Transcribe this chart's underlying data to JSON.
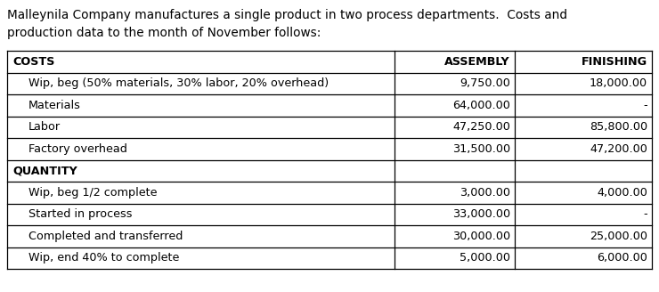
{
  "title_line1": "Malleynila Company manufactures a single product in two process departments.  Costs and",
  "title_line2": "production data to the month of November follows:",
  "rows": [
    {
      "label": "COSTS",
      "indent": false,
      "bold": true,
      "assembly": "ASSEMBLY",
      "finishing": "FINISHING",
      "section_header": true,
      "val_bold": true
    },
    {
      "label": "Wip, beg (50% materials, 30% labor, 20% overhead)",
      "indent": true,
      "bold": false,
      "assembly": "9,750.00",
      "finishing": "18,000.00"
    },
    {
      "label": "Materials",
      "indent": true,
      "bold": false,
      "assembly": "64,000.00",
      "finishing": "-"
    },
    {
      "label": "Labor",
      "indent": true,
      "bold": false,
      "assembly": "47,250.00",
      "finishing": "85,800.00"
    },
    {
      "label": "Factory overhead",
      "indent": true,
      "bold": false,
      "assembly": "31,500.00",
      "finishing": "47,200.00"
    },
    {
      "label": "QUANTITY",
      "indent": false,
      "bold": true,
      "assembly": "",
      "finishing": "",
      "section_header": true,
      "val_bold": false
    },
    {
      "label": "Wip, beg 1/2 complete",
      "indent": true,
      "bold": false,
      "assembly": "3,000.00",
      "finishing": "4,000.00"
    },
    {
      "label": "Started in process",
      "indent": true,
      "bold": false,
      "assembly": "33,000.00",
      "finishing": "-"
    },
    {
      "label": "Completed and transferred",
      "indent": true,
      "bold": false,
      "assembly": "30,000.00",
      "finishing": "25,000.00"
    },
    {
      "label": "Wip, end 40% to complete",
      "indent": true,
      "bold": false,
      "assembly": "5,000.00",
      "finishing": "6,000.00"
    }
  ],
  "bg_color": "#ffffff",
  "text_color": "#000000",
  "title_fontsize": 9.8,
  "table_fontsize": 9.2,
  "fig_width": 7.4,
  "fig_height": 3.28,
  "dpi": 100
}
